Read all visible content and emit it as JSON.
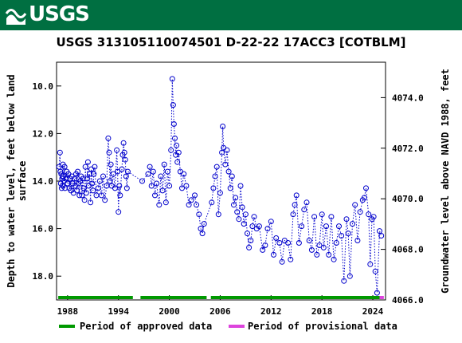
{
  "header": {
    "logo_text": "USGS"
  },
  "chart_data": {
    "type": "scatter",
    "title": "USGS 313105110074501 D-22-22 17ACC3 [COTBLM]",
    "ylabel_left": "Depth to water level, feet below land surface",
    "ylabel_left_lines": [
      "Depth to water level, feet below land",
      "surface"
    ],
    "ylabel_right": "Groundwater level above NAVD 1988, feet",
    "x_ticks": [
      "1988",
      "1994",
      "2000",
      "2006",
      "2012",
      "2018",
      "2024"
    ],
    "x_tick_values": [
      1988,
      1994,
      2000,
      2006,
      2012,
      2018,
      2024
    ],
    "y_left_ticks": [
      "10.0",
      "12.0",
      "14.0",
      "16.0",
      "18.0"
    ],
    "y_left_tick_values": [
      10,
      12,
      14,
      16,
      18
    ],
    "y_right_ticks": [
      "4074.0",
      "4072.0",
      "4070.0",
      "4068.0",
      "4066.0"
    ],
    "y_right_tick_values": [
      4074,
      4072,
      4070,
      4068,
      4066
    ],
    "xlim": [
      1986.7,
      2025.5
    ],
    "ylim_left": [
      9.0,
      19.0
    ],
    "ylim_right": [
      4066.0,
      4075.4
    ],
    "y_inverted": true,
    "grid": false,
    "legend_position": "bottom",
    "series": [
      {
        "name": "Groundwater level",
        "marker": "open-circle",
        "line": "dotted",
        "color": "#0000cc",
        "points": [
          [
            1987.0,
            13.4
          ],
          [
            1987.1,
            12.8
          ],
          [
            1987.15,
            13.6
          ],
          [
            1987.2,
            14.1
          ],
          [
            1987.25,
            13.7
          ],
          [
            1987.3,
            14.3
          ],
          [
            1987.35,
            13.9
          ],
          [
            1987.4,
            14.2
          ],
          [
            1987.45,
            13.3
          ],
          [
            1987.5,
            13.8
          ],
          [
            1987.6,
            14.0
          ],
          [
            1987.65,
            13.4
          ],
          [
            1987.7,
            14.3
          ],
          [
            1987.8,
            13.9
          ],
          [
            1987.9,
            13.6
          ],
          [
            1988.0,
            14.1
          ],
          [
            1988.1,
            13.7
          ],
          [
            1988.2,
            14.3
          ],
          [
            1988.3,
            13.9
          ],
          [
            1988.4,
            14.4
          ],
          [
            1988.5,
            13.8
          ],
          [
            1988.6,
            14.1
          ],
          [
            1988.7,
            14.5
          ],
          [
            1988.8,
            13.9
          ],
          [
            1988.9,
            14.2
          ],
          [
            1989.0,
            13.7
          ],
          [
            1989.1,
            14.4
          ],
          [
            1989.2,
            13.6
          ],
          [
            1989.3,
            14.1
          ],
          [
            1989.4,
            14.6
          ],
          [
            1989.5,
            14.0
          ],
          [
            1989.6,
            13.8
          ],
          [
            1989.7,
            14.6
          ],
          [
            1989.8,
            13.9
          ],
          [
            1989.9,
            14.3
          ],
          [
            1990.0,
            14.8
          ],
          [
            1990.1,
            13.4
          ],
          [
            1990.2,
            14.5
          ],
          [
            1990.3,
            13.9
          ],
          [
            1990.4,
            13.2
          ],
          [
            1990.5,
            14.2
          ],
          [
            1990.6,
            13.7
          ],
          [
            1990.7,
            14.9
          ],
          [
            1990.8,
            13.5
          ],
          [
            1990.9,
            14.1
          ],
          [
            1991.0,
            14.4
          ],
          [
            1991.1,
            13.7
          ],
          [
            1991.2,
            13.4
          ],
          [
            1991.4,
            14.6
          ],
          [
            1991.6,
            14.3
          ],
          [
            1991.8,
            14.0
          ],
          [
            1992.0,
            14.6
          ],
          [
            1992.2,
            13.8
          ],
          [
            1992.4,
            14.8
          ],
          [
            1992.6,
            14.2
          ],
          [
            1992.8,
            12.2
          ],
          [
            1992.9,
            12.8
          ],
          [
            1993.0,
            14.0
          ],
          [
            1993.1,
            13.3
          ],
          [
            1993.2,
            14.2
          ],
          [
            1993.4,
            13.7
          ],
          [
            1993.6,
            14.3
          ],
          [
            1993.8,
            12.7
          ],
          [
            1993.9,
            13.6
          ],
          [
            1994.0,
            15.3
          ],
          [
            1994.1,
            14.2
          ],
          [
            1994.2,
            14.6
          ],
          [
            1994.4,
            13.5
          ],
          [
            1994.5,
            12.9
          ],
          [
            1994.6,
            12.4
          ],
          [
            1994.7,
            12.8
          ],
          [
            1994.8,
            13.1
          ],
          [
            1994.9,
            13.8
          ],
          [
            1995.0,
            14.3
          ],
          [
            1995.1,
            13.6
          ],
          [
            1996.8,
            14.0
          ],
          [
            1997.5,
            13.7
          ],
          [
            1997.7,
            13.4
          ],
          [
            1997.9,
            14.2
          ],
          [
            1998.1,
            13.6
          ],
          [
            1998.3,
            14.6
          ],
          [
            1998.5,
            14.1
          ],
          [
            1998.8,
            15.0
          ],
          [
            1999.0,
            13.8
          ],
          [
            1999.2,
            14.4
          ],
          [
            1999.4,
            13.3
          ],
          [
            1999.6,
            14.9
          ],
          [
            1999.8,
            13.6
          ],
          [
            2000.0,
            14.2
          ],
          [
            2000.2,
            12.7
          ],
          [
            2000.35,
            9.7
          ],
          [
            2000.45,
            10.8
          ],
          [
            2000.55,
            11.6
          ],
          [
            2000.65,
            12.2
          ],
          [
            2000.75,
            12.9
          ],
          [
            2000.85,
            12.5
          ],
          [
            2000.95,
            13.2
          ],
          [
            2001.1,
            12.8
          ],
          [
            2001.3,
            13.6
          ],
          [
            2001.5,
            14.3
          ],
          [
            2001.7,
            13.7
          ],
          [
            2002.0,
            14.2
          ],
          [
            2002.3,
            15.0
          ],
          [
            2002.6,
            14.8
          ],
          [
            2003.0,
            14.6
          ],
          [
            2003.2,
            15.0
          ],
          [
            2003.5,
            15.4
          ],
          [
            2003.7,
            16.0
          ],
          [
            2003.9,
            16.2
          ],
          [
            2004.1,
            15.8
          ],
          [
            2005.0,
            14.9
          ],
          [
            2005.2,
            14.3
          ],
          [
            2005.4,
            13.8
          ],
          [
            2005.6,
            13.4
          ],
          [
            2005.8,
            15.4
          ],
          [
            2006.0,
            14.5
          ],
          [
            2006.2,
            12.8
          ],
          [
            2006.3,
            11.7
          ],
          [
            2006.4,
            12.6
          ],
          [
            2006.6,
            13.3
          ],
          [
            2006.8,
            12.7
          ],
          [
            2007.0,
            13.6
          ],
          [
            2007.2,
            14.3
          ],
          [
            2007.4,
            13.8
          ],
          [
            2007.6,
            15.0
          ],
          [
            2007.8,
            14.7
          ],
          [
            2008.0,
            15.3
          ],
          [
            2008.2,
            15.6
          ],
          [
            2008.4,
            14.2
          ],
          [
            2008.6,
            15.1
          ],
          [
            2008.8,
            15.8
          ],
          [
            2009.0,
            15.4
          ],
          [
            2009.2,
            16.2
          ],
          [
            2009.4,
            16.8
          ],
          [
            2009.6,
            16.5
          ],
          [
            2009.8,
            15.9
          ],
          [
            2010.0,
            15.5
          ],
          [
            2010.3,
            16.0
          ],
          [
            2010.6,
            15.9
          ],
          [
            2011.0,
            16.9
          ],
          [
            2011.3,
            16.7
          ],
          [
            2011.6,
            16.0
          ],
          [
            2012.0,
            15.7
          ],
          [
            2012.3,
            17.1
          ],
          [
            2012.6,
            16.4
          ],
          [
            2013.0,
            16.6
          ],
          [
            2013.3,
            17.4
          ],
          [
            2013.6,
            16.5
          ],
          [
            2014.0,
            16.6
          ],
          [
            2014.3,
            17.3
          ],
          [
            2014.6,
            15.4
          ],
          [
            2014.8,
            15.0
          ],
          [
            2015.0,
            14.6
          ],
          [
            2015.3,
            16.6
          ],
          [
            2015.6,
            15.9
          ],
          [
            2015.9,
            15.2
          ],
          [
            2016.2,
            14.9
          ],
          [
            2016.5,
            16.5
          ],
          [
            2016.8,
            16.9
          ],
          [
            2017.1,
            15.5
          ],
          [
            2017.4,
            17.1
          ],
          [
            2017.7,
            16.7
          ],
          [
            2018.0,
            15.4
          ],
          [
            2018.2,
            16.8
          ],
          [
            2018.5,
            15.9
          ],
          [
            2018.8,
            17.1
          ],
          [
            2019.1,
            15.5
          ],
          [
            2019.4,
            17.3
          ],
          [
            2019.7,
            16.6
          ],
          [
            2020.0,
            15.9
          ],
          [
            2020.3,
            16.3
          ],
          [
            2020.6,
            18.2
          ],
          [
            2020.9,
            15.6
          ],
          [
            2021.1,
            16.2
          ],
          [
            2021.3,
            18.0
          ],
          [
            2021.6,
            15.8
          ],
          [
            2021.9,
            15.0
          ],
          [
            2022.2,
            16.5
          ],
          [
            2022.5,
            15.3
          ],
          [
            2022.8,
            14.8
          ],
          [
            2023.0,
            14.7
          ],
          [
            2023.2,
            14.3
          ],
          [
            2023.5,
            15.4
          ],
          [
            2023.7,
            17.5
          ],
          [
            2023.9,
            15.6
          ],
          [
            2024.1,
            15.5
          ],
          [
            2024.3,
            17.8
          ],
          [
            2024.5,
            18.7
          ],
          [
            2024.8,
            16.1
          ],
          [
            2025.0,
            16.3
          ]
        ]
      }
    ],
    "approved_periods": [
      [
        1986.9,
        1995.7
      ],
      [
        1996.6,
        2004.4
      ],
      [
        2004.9,
        2024.8
      ]
    ],
    "provisional_periods": [
      [
        2024.8,
        2025.3
      ]
    ],
    "legend": [
      {
        "label": "Period of approved data",
        "color": "#009900"
      },
      {
        "label": "Period of provisional data",
        "color": "#dd44dd"
      }
    ]
  }
}
